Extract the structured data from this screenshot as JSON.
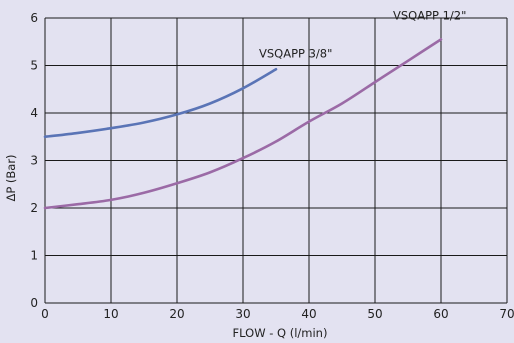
{
  "chart_data": {
    "type": "line",
    "title": "",
    "xlabel": "FLOW - Q (l/min)",
    "ylabel": "ΔP (Bar)",
    "xlim": [
      0,
      70
    ],
    "ylim": [
      0,
      6
    ],
    "x_ticks": [
      "0",
      "10",
      "20",
      "30",
      "40",
      "50",
      "60",
      "70"
    ],
    "y_ticks": [
      "0",
      "1",
      "2",
      "3",
      "4",
      "5",
      "6"
    ],
    "grid": true,
    "series": [
      {
        "name": "VSQAPP 3/8\"",
        "color": "#5a74b6",
        "x": [
          0,
          5,
          10,
          15,
          20,
          25,
          30,
          35
        ],
        "y": [
          3.5,
          3.58,
          3.68,
          3.8,
          3.97,
          4.2,
          4.52,
          4.92
        ]
      },
      {
        "name": "VSQAPP 1/2\"",
        "color": "#9b6aa6",
        "x": [
          0,
          5,
          10,
          15,
          20,
          25,
          30,
          35,
          40,
          45,
          50,
          55,
          60
        ],
        "y": [
          2.0,
          2.08,
          2.17,
          2.32,
          2.52,
          2.75,
          3.05,
          3.4,
          3.82,
          4.2,
          4.65,
          5.1,
          5.55
        ]
      }
    ]
  }
}
